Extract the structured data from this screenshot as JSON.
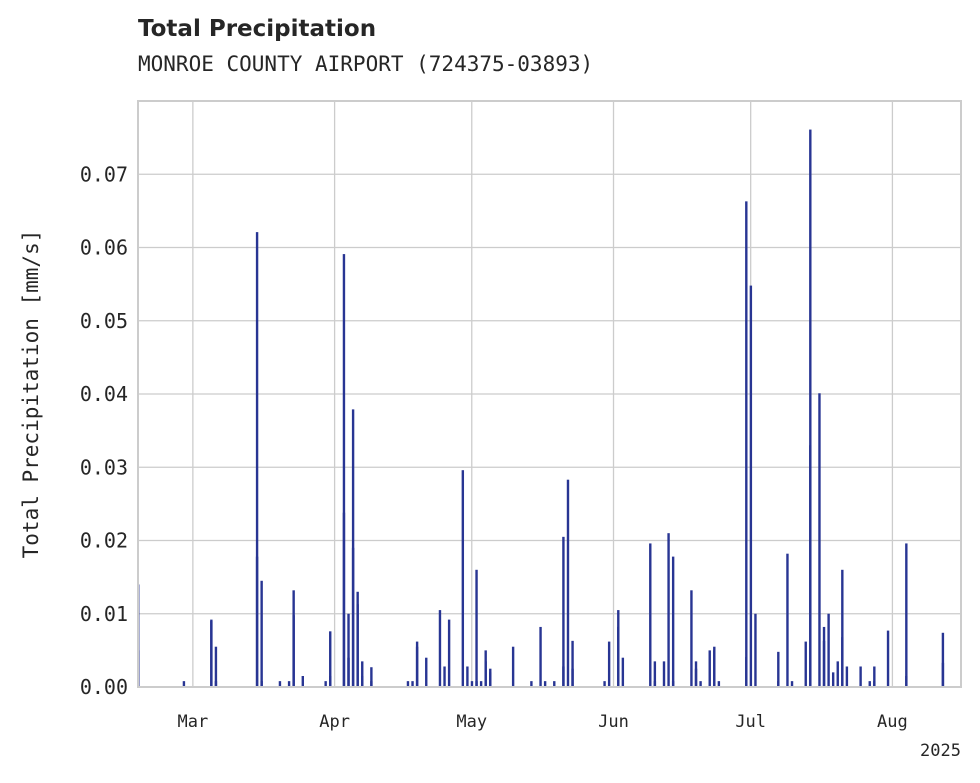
{
  "title": "Total Precipitation",
  "subtitle": "MONROE COUNTY AIRPORT (724375-03893)",
  "colors": {
    "bars": "#283593",
    "grid": "#cccccc",
    "axes": "#cccccc",
    "text": "#262626"
  },
  "chart_data": {
    "type": "bar",
    "ylabel": "Total Precipitation [mm/s]",
    "xlabel": "",
    "ylim": [
      0,
      0.08
    ],
    "yticks": [
      "0.00",
      "0.01",
      "0.02",
      "0.03",
      "0.04",
      "0.05",
      "0.06",
      "0.07"
    ],
    "year_label": "2025",
    "xlim": [
      "2025-02-17",
      "2025-08-16"
    ],
    "xticks": [
      {
        "label": "Mar",
        "date": "2025-03-01"
      },
      {
        "label": "Apr",
        "date": "2025-04-01"
      },
      {
        "label": "May",
        "date": "2025-05-01"
      },
      {
        "label": "Jun",
        "date": "2025-06-01"
      },
      {
        "label": "Jul",
        "date": "2025-07-01"
      },
      {
        "label": "Aug",
        "date": "2025-08-01"
      }
    ],
    "grid": true,
    "series": [
      {
        "points": [
          [
            "2025-02-17",
            0.014
          ],
          [
            "2025-02-17",
            0.005
          ],
          [
            "2025-02-27",
            0.0008
          ],
          [
            "2025-03-05",
            0.009
          ],
          [
            "2025-03-05",
            0.0092
          ],
          [
            "2025-03-06",
            0.0055
          ],
          [
            "2025-03-06",
            0.0008
          ],
          [
            "2025-03-15",
            0.0178
          ],
          [
            "2025-03-15",
            0.0621
          ],
          [
            "2025-03-16",
            0.0145
          ],
          [
            "2025-03-16",
            0.0008
          ],
          [
            "2025-03-20",
            0.0008
          ],
          [
            "2025-03-22",
            0.0008
          ],
          [
            "2025-03-23",
            0.0132
          ],
          [
            "2025-03-23",
            0.0098
          ],
          [
            "2025-03-25",
            0.0015
          ],
          [
            "2025-03-30",
            0.0008
          ],
          [
            "2025-03-31",
            0.0015
          ],
          [
            "2025-03-31",
            0.0076
          ],
          [
            "2025-04-03",
            0.0238
          ],
          [
            "2025-04-03",
            0.0591
          ],
          [
            "2025-04-04",
            0.01
          ],
          [
            "2025-04-04",
            0.004
          ],
          [
            "2025-04-05",
            0.0379
          ],
          [
            "2025-04-05",
            0.019
          ],
          [
            "2025-04-06",
            0.013
          ],
          [
            "2025-04-06",
            0.0113
          ],
          [
            "2025-04-07",
            0.0035
          ],
          [
            "2025-04-07",
            0.0015
          ],
          [
            "2025-04-09",
            0.0008
          ],
          [
            "2025-04-09",
            0.0027
          ],
          [
            "2025-04-17",
            0.0008
          ],
          [
            "2025-04-18",
            0.0008
          ],
          [
            "2025-04-19",
            0.0055
          ],
          [
            "2025-04-19",
            0.0062
          ],
          [
            "2025-04-21",
            0.004
          ],
          [
            "2025-04-24",
            0.0105
          ],
          [
            "2025-04-25",
            0.0028
          ],
          [
            "2025-04-26",
            0.0092
          ],
          [
            "2025-04-29",
            0.0296
          ],
          [
            "2025-04-30",
            0.0028
          ],
          [
            "2025-05-01",
            0.0008
          ],
          [
            "2025-05-02",
            0.0008
          ],
          [
            "2025-05-02",
            0.016
          ],
          [
            "2025-05-03",
            0.0008
          ],
          [
            "2025-05-04",
            0.0035
          ],
          [
            "2025-05-04",
            0.005
          ],
          [
            "2025-05-05",
            0.0025
          ],
          [
            "2025-05-05",
            0.002
          ],
          [
            "2025-05-10",
            0.0055
          ],
          [
            "2025-05-14",
            0.0008
          ],
          [
            "2025-05-16",
            0.0082
          ],
          [
            "2025-05-17",
            0.0008
          ],
          [
            "2025-05-19",
            0.0008
          ],
          [
            "2025-05-21",
            0.0028
          ],
          [
            "2025-05-21",
            0.0205
          ],
          [
            "2025-05-22",
            0.0283
          ],
          [
            "2025-05-23",
            0.0025
          ],
          [
            "2025-05-23",
            0.0063
          ],
          [
            "2025-05-30",
            0.0008
          ],
          [
            "2025-05-31",
            0.0062
          ],
          [
            "2025-06-02",
            0.0105
          ],
          [
            "2025-06-02",
            0.0082
          ],
          [
            "2025-06-03",
            0.004
          ],
          [
            "2025-06-09",
            0.0196
          ],
          [
            "2025-06-10",
            0.0035
          ],
          [
            "2025-06-10",
            0.0008
          ],
          [
            "2025-06-12",
            0.0035
          ],
          [
            "2025-06-13",
            0.021
          ],
          [
            "2025-06-14",
            0.0178
          ],
          [
            "2025-06-14",
            0.0008
          ],
          [
            "2025-06-18",
            0.0132
          ],
          [
            "2025-06-19",
            0.0035
          ],
          [
            "2025-06-19",
            0.0025
          ],
          [
            "2025-06-20",
            0.0008
          ],
          [
            "2025-06-22",
            0.005
          ],
          [
            "2025-06-23",
            0.0055
          ],
          [
            "2025-06-23",
            0.005
          ],
          [
            "2025-06-24",
            0.0008
          ],
          [
            "2025-06-30",
            0.0041
          ],
          [
            "2025-06-30",
            0.0663
          ],
          [
            "2025-07-01",
            0.0548
          ],
          [
            "2025-07-02",
            0.01
          ],
          [
            "2025-07-07",
            0.0008
          ],
          [
            "2025-07-07",
            0.0048
          ],
          [
            "2025-07-09",
            0.0182
          ],
          [
            "2025-07-10",
            0.0008
          ],
          [
            "2025-07-13",
            0.0062
          ],
          [
            "2025-07-14",
            0.033
          ],
          [
            "2025-07-14",
            0.0761
          ],
          [
            "2025-07-16",
            0.0401
          ],
          [
            "2025-07-17",
            0.0082
          ],
          [
            "2025-07-17",
            0.0063
          ],
          [
            "2025-07-18",
            0.01
          ],
          [
            "2025-07-19",
            0.002
          ],
          [
            "2025-07-20",
            0.0035
          ],
          [
            "2025-07-21",
            0.016
          ],
          [
            "2025-07-21",
            0.0068
          ],
          [
            "2025-07-22",
            0.0028
          ],
          [
            "2025-07-25",
            0.0028
          ],
          [
            "2025-07-27",
            0.0008
          ],
          [
            "2025-07-28",
            0.0028
          ],
          [
            "2025-07-28",
            0.0008
          ],
          [
            "2025-07-31",
            0.0077
          ],
          [
            "2025-08-04",
            0.0196
          ],
          [
            "2025-08-04",
            0.0015
          ],
          [
            "2025-08-12",
            0.0033
          ],
          [
            "2025-08-12",
            0.0074
          ]
        ]
      }
    ]
  }
}
